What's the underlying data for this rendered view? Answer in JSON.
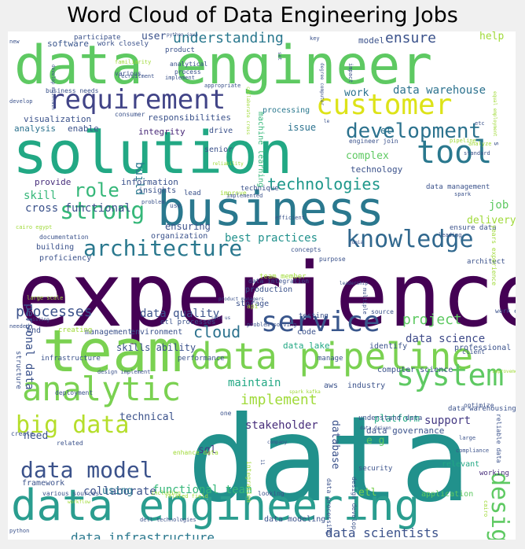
{
  "chart_data": {
    "type": "wordcloud",
    "title": "Word Cloud of Data Engineering Jobs",
    "words": [
      {
        "text": "data",
        "weight": 100,
        "color": "#21918c"
      },
      {
        "text": "experience",
        "weight": 92,
        "color": "#440154"
      },
      {
        "text": "data engineer",
        "weight": 82,
        "color": "#5ec962"
      },
      {
        "text": "solution",
        "weight": 78,
        "color": "#22a884"
      },
      {
        "text": "business",
        "weight": 70,
        "color": "#2a788e"
      },
      {
        "text": "team",
        "weight": 70,
        "color": "#7ad151"
      },
      {
        "text": "data engineering",
        "weight": 64,
        "color": "#2a9d8f"
      },
      {
        "text": "data pipeline",
        "weight": 55,
        "color": "#7ad151"
      },
      {
        "text": "analytic",
        "weight": 52,
        "color": "#7ad151"
      },
      {
        "text": "customer",
        "weight": 46,
        "color": "#dde318"
      },
      {
        "text": "tool",
        "weight": 46,
        "color": "#2a788e"
      },
      {
        "text": "service",
        "weight": 40,
        "color": "#39568c"
      },
      {
        "text": "system",
        "weight": 40,
        "color": "#5ec962"
      },
      {
        "text": "requirement",
        "weight": 40,
        "color": "#414487"
      },
      {
        "text": "knowledge",
        "weight": 37,
        "color": "#31688e"
      },
      {
        "text": "architecture",
        "weight": 34,
        "color": "#2a788e"
      },
      {
        "text": "design",
        "weight": 34,
        "color": "#5ec962"
      },
      {
        "text": "big data",
        "weight": 34,
        "color": "#b5de2b"
      },
      {
        "text": "data model",
        "weight": 34,
        "color": "#3b528b"
      },
      {
        "text": "strong",
        "weight": 32,
        "color": "#35b779"
      },
      {
        "text": "development",
        "weight": 30,
        "color": "#2c728e"
      },
      {
        "text": "role",
        "weight": 26,
        "color": "#35b779"
      },
      {
        "text": "data infrastructure",
        "weight": 22,
        "color": "#2a788e"
      },
      {
        "text": "data scientists",
        "weight": 22,
        "color": "#3b528b"
      },
      {
        "text": "technologies",
        "weight": 20,
        "color": "#1f988b"
      },
      {
        "text": "ensure",
        "weight": 19,
        "color": "#3b528b"
      },
      {
        "text": "understanding",
        "weight": 19,
        "color": "#2a788e"
      },
      {
        "text": "data warehouse",
        "weight": 18,
        "color": "#2c728e"
      },
      {
        "text": "project",
        "weight": 20,
        "color": "#5ec962"
      },
      {
        "text": "processes",
        "weight": 20,
        "color": "#3b528b"
      },
      {
        "text": "cloud",
        "weight": 20,
        "color": "#2c728e"
      },
      {
        "text": "best practices",
        "weight": 17,
        "color": "#21918c"
      },
      {
        "text": "data quality",
        "weight": 17,
        "color": "#3b528b"
      },
      {
        "text": "implement",
        "weight": 18,
        "color": "#a0da39"
      },
      {
        "text": "maintain",
        "weight": 16,
        "color": "#22a884"
      },
      {
        "text": "cross functional",
        "weight": 16,
        "color": "#3b528b"
      },
      {
        "text": "functional team",
        "weight": 16,
        "color": "#35b779"
      },
      {
        "text": "stakeholder",
        "weight": 16,
        "color": "#472d7b"
      },
      {
        "text": "collaborate",
        "weight": 16,
        "color": "#3b528b"
      },
      {
        "text": "data science",
        "weight": 15,
        "color": "#3e4a89"
      },
      {
        "text": "support",
        "weight": 15,
        "color": "#443983"
      },
      {
        "text": "personal data",
        "weight": 15,
        "color": "#3b528b"
      },
      {
        "text": "build",
        "weight": 15,
        "color": "#2a788e"
      },
      {
        "text": "skill",
        "weight": 14,
        "color": "#35b779"
      },
      {
        "text": "job",
        "weight": 14,
        "color": "#5ec962"
      },
      {
        "text": "complex",
        "weight": 13,
        "color": "#5ec962"
      },
      {
        "text": "work",
        "weight": 13,
        "color": "#2c728e"
      },
      {
        "text": "user",
        "weight": 13,
        "color": "#3b528b"
      },
      {
        "text": "help",
        "weight": 13,
        "color": "#a0da39"
      },
      {
        "text": "sql",
        "weight": 13,
        "color": "#443983"
      },
      {
        "text": "using",
        "weight": 13,
        "color": "#2a788e"
      },
      {
        "text": "need",
        "weight": 13,
        "color": "#3b528b"
      },
      {
        "text": "technical",
        "weight": 12,
        "color": "#3b528b"
      },
      {
        "text": "delivery",
        "weight": 12,
        "color": "#a0da39"
      },
      {
        "text": "e g",
        "weight": 12,
        "color": "#5ec962"
      },
      {
        "text": "etl",
        "weight": 12,
        "color": "#7ad151"
      },
      {
        "text": "database",
        "weight": 12,
        "color": "#3b528b"
      },
      {
        "text": "platform",
        "weight": 11,
        "color": "#22a884"
      },
      {
        "text": "data governance",
        "weight": 11,
        "color": "#3b528b"
      },
      {
        "text": "issue",
        "weight": 11,
        "color": "#2c728e"
      },
      {
        "text": "et",
        "weight": 11,
        "color": "#2c728e"
      },
      {
        "text": "technology",
        "weight": 10,
        "color": "#3b528b"
      },
      {
        "text": "software",
        "weight": 10,
        "color": "#39568c"
      },
      {
        "text": "model",
        "weight": 10,
        "color": "#3b528b"
      },
      {
        "text": "data lake",
        "weight": 10,
        "color": "#22a884"
      },
      {
        "text": "aws",
        "weight": 10,
        "color": "#3b528b"
      },
      {
        "text": "framework",
        "weight": 10,
        "color": "#3b528b"
      },
      {
        "text": "processing",
        "weight": 9,
        "color": "#2a788e"
      },
      {
        "text": "responsibilities",
        "weight": 10,
        "color": "#3b528b"
      },
      {
        "text": "visualization",
        "weight": 10,
        "color": "#3b528b"
      },
      {
        "text": "analysis",
        "weight": 10,
        "color": "#2c728e"
      },
      {
        "text": "enable",
        "weight": 10,
        "color": "#3b528b"
      },
      {
        "text": "integrity",
        "weight": 10,
        "color": "#482878"
      },
      {
        "text": "drive",
        "weight": 10,
        "color": "#3b528b"
      },
      {
        "text": "provide",
        "weight": 10,
        "color": "#472d7b"
      },
      {
        "text": "information",
        "weight": 10,
        "color": "#3b528b"
      },
      {
        "text": "insights",
        "weight": 9,
        "color": "#3b528b"
      },
      {
        "text": "storage",
        "weight": 9,
        "color": "#3b528b"
      },
      {
        "text": "production",
        "weight": 9,
        "color": "#3b528b"
      },
      {
        "text": "management",
        "weight": 9,
        "color": "#3b528b"
      },
      {
        "text": "environment",
        "weight": 9,
        "color": "#3b528b"
      },
      {
        "text": "organization",
        "weight": 9,
        "color": "#3b528b"
      },
      {
        "text": "building",
        "weight": 9,
        "color": "#3b528b"
      },
      {
        "text": "proficiency",
        "weight": 9,
        "color": "#3b528b"
      },
      {
        "text": "end",
        "weight": 9,
        "color": "#3b528b"
      },
      {
        "text": "code",
        "weight": 9,
        "color": "#3b528b"
      },
      {
        "text": "identify",
        "weight": 9,
        "color": "#3b528b"
      },
      {
        "text": "professional",
        "weight": 9,
        "color": "#3b528b"
      },
      {
        "text": "computer science",
        "weight": 9,
        "color": "#3b528b"
      },
      {
        "text": "industry",
        "weight": 9,
        "color": "#3b528b"
      },
      {
        "text": "understand data",
        "weight": 8,
        "color": "#3b528b"
      },
      {
        "text": "data warehousing",
        "weight": 8,
        "color": "#3b528b"
      },
      {
        "text": "security",
        "weight": 8,
        "color": "#3b528b"
      },
      {
        "text": "relevant",
        "weight": 9,
        "color": "#22a884"
      },
      {
        "text": "working",
        "weight": 8,
        "color": "#472d7b"
      },
      {
        "text": "application",
        "weight": 9,
        "color": "#5ec962"
      },
      {
        "text": "data modeling",
        "weight": 9,
        "color": "#3b528b"
      },
      {
        "text": "data management",
        "weight": 8,
        "color": "#3b528b"
      },
      {
        "text": "ensure data",
        "weight": 8,
        "color": "#3b528b"
      },
      {
        "text": "architect",
        "weight": 8,
        "color": "#3b528b"
      },
      {
        "text": "machine learning",
        "weight": 9,
        "color": "#35b779"
      },
      {
        "text": "senior",
        "weight": 9,
        "color": "#3b528b"
      },
      {
        "text": "ensuring",
        "weight": 12,
        "color": "#3b528b"
      },
      {
        "text": "work closely",
        "weight": 8,
        "color": "#3b528b"
      },
      {
        "text": "product",
        "weight": 8,
        "color": "#3b528b"
      },
      {
        "text": "participate",
        "weight": 8,
        "color": "#3b528b"
      },
      {
        "text": "analytical",
        "weight": 7,
        "color": "#3b528b"
      },
      {
        "text": "process",
        "weight": 7,
        "color": "#3b528b"
      },
      {
        "text": "consumer",
        "weight": 7,
        "color": "#3b528b"
      },
      {
        "text": "business needs",
        "weight": 7,
        "color": "#3b528b"
      },
      {
        "text": "documentation",
        "weight": 7,
        "color": "#3b528b"
      },
      {
        "text": "concepts",
        "weight": 7,
        "color": "#3b528b"
      },
      {
        "text": "purpose",
        "weight": 7,
        "color": "#3b528b"
      },
      {
        "text": "years experience",
        "weight": 7,
        "color": "#a0da39"
      },
      {
        "text": "data integration",
        "weight": 8,
        "color": "#3b528b"
      },
      {
        "text": "team member",
        "weight": 7,
        "color": "#a0da39"
      },
      {
        "text": "api",
        "weight": 9,
        "color": "#a0da39"
      },
      {
        "text": "testing",
        "weight": 7,
        "color": "#3b528b"
      },
      {
        "text": "source",
        "weight": 8,
        "color": "#3b528b"
      },
      {
        "text": "etl processes",
        "weight": 7,
        "color": "#3b528b"
      },
      {
        "text": "creating",
        "weight": 8,
        "color": "#a0da39"
      },
      {
        "text": "structure",
        "weight": 8,
        "color": "#3b528b"
      },
      {
        "text": "infrastructure",
        "weight": 9,
        "color": "#3b528b"
      },
      {
        "text": "performance",
        "weight": 8,
        "color": "#3b528b"
      },
      {
        "text": "manage",
        "weight": 8,
        "color": "#3b528b"
      },
      {
        "text": "client",
        "weight": 8,
        "color": "#3b528b"
      },
      {
        "text": "deployment",
        "weight": 7,
        "color": "#3b528b"
      },
      {
        "text": "create",
        "weight": 7,
        "color": "#3b528b"
      },
      {
        "text": "related",
        "weight": 7,
        "color": "#3b528b"
      },
      {
        "text": "various sources",
        "weight": 7,
        "color": "#3b528b"
      },
      {
        "text": "looking",
        "weight": 7,
        "color": "#3b528b"
      },
      {
        "text": "optimize",
        "weight": 7,
        "color": "#3b528b"
      },
      {
        "text": "large",
        "weight": 7,
        "color": "#3b528b"
      },
      {
        "text": "compliance",
        "weight": 6,
        "color": "#3b528b"
      },
      {
        "text": "reliable data",
        "weight": 6,
        "color": "#3b528b"
      },
      {
        "text": "work environment",
        "weight": 7,
        "color": "#3b528b"
      },
      {
        "text": "new",
        "weight": 7,
        "color": "#3b528b"
      },
      {
        "text": "develop",
        "weight": 7,
        "color": "#3b528b"
      },
      {
        "text": "python",
        "weight": 6,
        "color": "#3b528b"
      },
      {
        "text": "python java",
        "weight": 6,
        "color": "#3b528b"
      },
      {
        "text": "key",
        "weight": 6,
        "color": "#3b528b"
      },
      {
        "text": "impact",
        "weight": 6,
        "color": "#3b528b"
      },
      {
        "text": "efficient",
        "weight": 6,
        "color": "#3b528b"
      },
      {
        "text": "spark",
        "weight": 6,
        "color": "#3b528b"
      },
      {
        "text": "leading",
        "weight": 6,
        "color": "#3b528b"
      },
      {
        "text": "technique",
        "weight": 6,
        "color": "#3b528b"
      },
      {
        "text": "improve",
        "weight": 7,
        "color": "#a0da39"
      },
      {
        "text": "lead",
        "weight": 7,
        "color": "#3b528b"
      },
      {
        "text": "use",
        "weight": 8,
        "color": "#3b528b"
      },
      {
        "text": "problem",
        "weight": 7,
        "color": "#3b528b"
      },
      {
        "text": "implemented",
        "weight": 6,
        "color": "#3b528b"
      },
      {
        "text": "product managers",
        "weight": 6,
        "color": "#3b528b"
      },
      {
        "text": "leadership",
        "weight": 6,
        "color": "#3b528b"
      },
      {
        "text": "multiple",
        "weight": 6,
        "color": "#3b528b"
      },
      {
        "text": "improvement",
        "weight": 6,
        "color": "#a0da39"
      },
      {
        "text": "jumia",
        "weight": 6,
        "color": "#3b528b"
      },
      {
        "text": "data driven",
        "weight": 6,
        "color": "#3b528b"
      },
      {
        "text": "enhance data",
        "weight": 6,
        "color": "#a0da39"
      },
      {
        "text": "including",
        "weight": 7,
        "color": "#a0da39"
      },
      {
        "text": "dell technologies",
        "weight": 6,
        "color": "#3b528b"
      },
      {
        "text": "integration",
        "weight": 6,
        "color": "#a0da39"
      },
      {
        "text": "data processing",
        "weight": 7,
        "color": "#3b528b"
      },
      {
        "text": "design develop",
        "weight": 7,
        "color": "#3b528b"
      },
      {
        "text": "skills ability",
        "weight": 7,
        "color": "#3b528b"
      },
      {
        "text": "s",
        "weight": 12,
        "color": "#3b528b"
      },
      {
        "text": "etc",
        "weight": 9,
        "color": "#3b528b"
      },
      {
        "text": "standard",
        "weight": 6,
        "color": "#3b528b"
      },
      {
        "text": "analyze",
        "weight": 6,
        "color": "#a0da39"
      },
      {
        "text": "engineer join",
        "weight": 6,
        "color": "#3b528b"
      },
      {
        "text": "familiarity",
        "weight": 7,
        "color": "#a0da39"
      },
      {
        "text": "recruitment",
        "weight": 6,
        "color": "#3b528b"
      },
      {
        "text": "implement",
        "weight": 6,
        "color": "#3b528b"
      },
      {
        "text": "appropriate",
        "weight": 6,
        "color": "#3b528b"
      },
      {
        "text": "reliability",
        "weight": 6,
        "color": "#a0da39"
      },
      {
        "text": "pipeline",
        "weight": 6,
        "color": "#a0da39"
      },
      {
        "text": "cairo",
        "weight": 6,
        "color": "#a0da39"
      },
      {
        "text": "cairo egypt",
        "weight": 6,
        "color": "#a0da39"
      },
      {
        "text": "needed",
        "weight": 6,
        "color": "#3b528b"
      },
      {
        "text": "existing",
        "weight": 6,
        "color": "#3b528b"
      },
      {
        "text": "large scale",
        "weight": 6,
        "color": "#a0da39"
      },
      {
        "text": "spark kafka",
        "weight": 6,
        "color": "#a0da39"
      },
      {
        "text": "company",
        "weight": 6,
        "color": "#3b528b"
      },
      {
        "text": "join us",
        "weight": 6,
        "color": "#3b528b"
      },
      {
        "text": "problem solving",
        "weight": 6,
        "color": "#3b528b"
      },
      {
        "text": "workflow",
        "weight": 6,
        "color": "#a0da39"
      },
      {
        "text": "design implement",
        "weight": 6,
        "color": "#3b528b"
      },
      {
        "text": "related field",
        "weight": 6,
        "color": "#a0da39"
      },
      {
        "text": "one",
        "weight": 6,
        "color": "#3b528b"
      },
      {
        "text": "set",
        "weight": 7,
        "color": "#3b528b"
      },
      {
        "text": "degree computer",
        "weight": 6,
        "color": "#3b528b"
      },
      {
        "text": "equal employment",
        "weight": 6,
        "color": "#a0da39"
      },
      {
        "text": "collaborate cross",
        "weight": 6,
        "color": "#a0da39"
      },
      {
        "text": "develop maintain",
        "weight": 6,
        "color": "#3b528b"
      },
      {
        "text": "various",
        "weight": 6,
        "color": "#3b528b"
      },
      {
        "text": "le",
        "weight": 6,
        "color": "#3b528b"
      },
      {
        "text": "11",
        "weight": 6,
        "color": "#3b528b"
      },
      {
        "text": "app",
        "weight": 6,
        "color": "#3b528b"
      }
    ]
  }
}
